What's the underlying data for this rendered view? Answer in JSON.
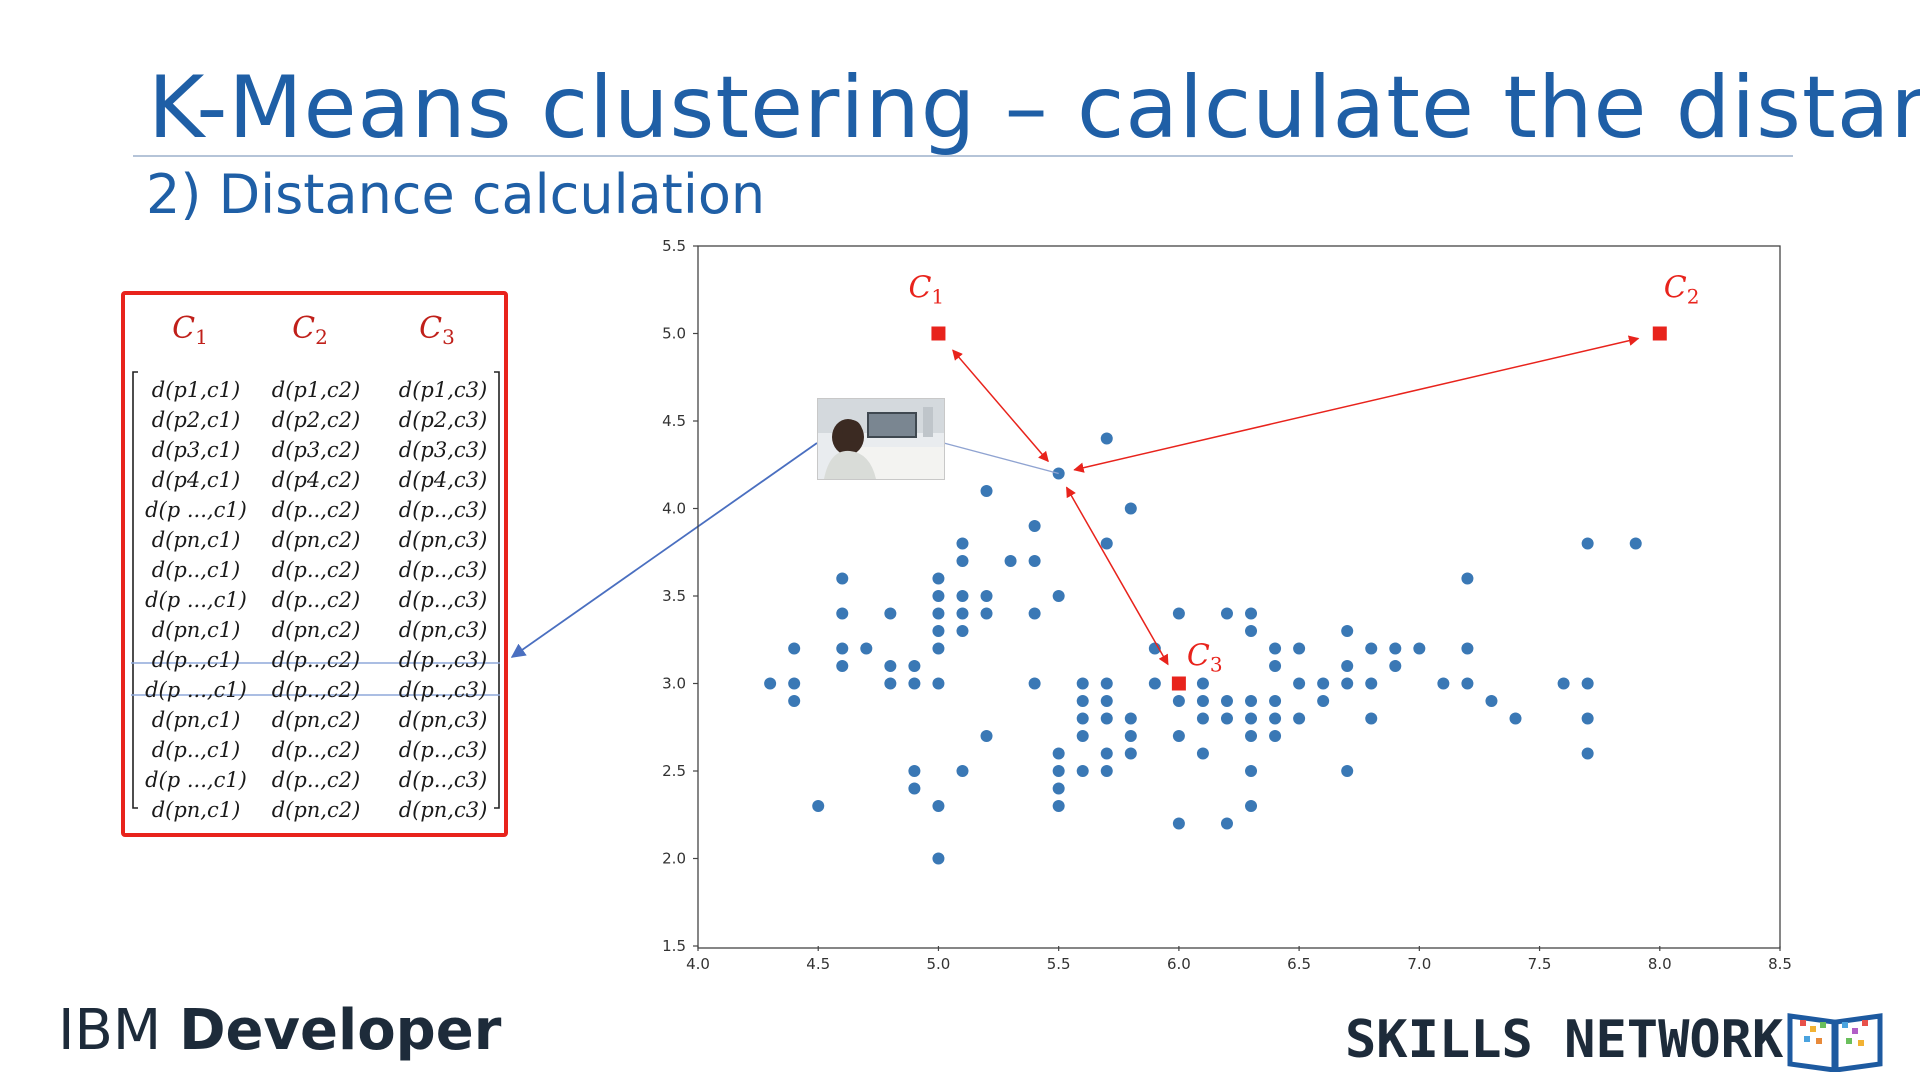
{
  "slide": {
    "title": "K-Means clustering – calculate the distance",
    "subtitle": "2) Distance calculation"
  },
  "matrix": {
    "headers": [
      "C1",
      "C2",
      "C3"
    ],
    "header_base": "C",
    "header_subs": [
      "1",
      "2",
      "3"
    ],
    "rows": [
      [
        "d(p1,c1)",
        "d(p1,c2)",
        "d(p1,c3)"
      ],
      [
        "d(p2,c1)",
        "d(p2,c2)",
        "d(p2,c3)"
      ],
      [
        "d(p3,c1)",
        "d(p3,c2)",
        "d(p3,c3)"
      ],
      [
        "d(p4,c1)",
        "d(p4,c2)",
        "d(p4,c3)"
      ],
      [
        "d(p ...,c1)",
        "d(p..,c2)",
        "d(p..,c3)"
      ],
      [
        "d(pn,c1)",
        "d(pn,c2)",
        "d(pn,c3)"
      ],
      [
        "d(p..,c1)",
        "d(p..,c2)",
        "d(p..,c3)"
      ],
      [
        "d(p ...,c1)",
        "d(p..,c2)",
        "d(p..,c3)"
      ],
      [
        "d(pn,c1)",
        "d(pn,c2)",
        "d(pn,c3)"
      ],
      [
        "d(p..,c1)",
        "d(p..,c2)",
        "d(p..,c3)"
      ],
      [
        "d(p ...,c1)",
        "d(p..,c2)",
        "d(p..,c3)"
      ],
      [
        "d(pn,c1)",
        "d(pn,c2)",
        "d(pn,c3)"
      ],
      [
        "d(p..,c1)",
        "d(p..,c2)",
        "d(p..,c3)"
      ],
      [
        "d(p ...,c1)",
        "d(p..,c2)",
        "d(p..,c3)"
      ],
      [
        "d(pn,c1)",
        "d(pn,c2)",
        "d(pn,c3)"
      ]
    ],
    "highlighted_row": 10,
    "border_color": "#e8231c",
    "header_color": "#c0201a"
  },
  "chart_data": {
    "type": "scatter",
    "title": "",
    "xlabel": "",
    "ylabel": "",
    "xlim": [
      4.0,
      8.5
    ],
    "ylim": [
      1.5,
      5.5
    ],
    "xticks": [
      "4.0",
      "4.5",
      "5.0",
      "5.5",
      "6.0",
      "6.5",
      "7.0",
      "7.5",
      "8.0",
      "8.5"
    ],
    "yticks": [
      "1.5",
      "2.0",
      "2.5",
      "3.0",
      "3.5",
      "4.0",
      "4.5",
      "5.0",
      "5.5"
    ],
    "grid": false,
    "point_color": "#3a78b5",
    "centroid_color": "#e8231c",
    "points": [
      [
        4.3,
        3.0
      ],
      [
        4.4,
        3.2
      ],
      [
        4.4,
        3.0
      ],
      [
        4.4,
        2.9
      ],
      [
        4.5,
        2.3
      ],
      [
        4.6,
        3.6
      ],
      [
        4.6,
        3.4
      ],
      [
        4.6,
        3.2
      ],
      [
        4.6,
        3.1
      ],
      [
        4.7,
        3.2
      ],
      [
        4.8,
        3.4
      ],
      [
        4.8,
        3.1
      ],
      [
        4.8,
        3.0
      ],
      [
        4.9,
        3.1
      ],
      [
        4.9,
        3.0
      ],
      [
        4.9,
        2.5
      ],
      [
        4.9,
        2.4
      ],
      [
        5.0,
        3.6
      ],
      [
        5.0,
        3.5
      ],
      [
        5.0,
        3.4
      ],
      [
        5.0,
        3.3
      ],
      [
        5.0,
        3.2
      ],
      [
        5.0,
        3.0
      ],
      [
        5.0,
        2.3
      ],
      [
        5.0,
        2.0
      ],
      [
        5.1,
        3.8
      ],
      [
        5.1,
        3.7
      ],
      [
        5.1,
        3.5
      ],
      [
        5.1,
        3.4
      ],
      [
        5.1,
        3.3
      ],
      [
        5.1,
        2.5
      ],
      [
        5.2,
        4.1
      ],
      [
        5.2,
        3.5
      ],
      [
        5.2,
        3.4
      ],
      [
        5.2,
        2.7
      ],
      [
        5.3,
        3.7
      ],
      [
        5.4,
        3.9
      ],
      [
        5.4,
        3.7
      ],
      [
        5.4,
        3.4
      ],
      [
        5.4,
        3.0
      ],
      [
        5.5,
        4.2
      ],
      [
        5.5,
        3.5
      ],
      [
        5.5,
        2.6
      ],
      [
        5.5,
        2.5
      ],
      [
        5.5,
        2.4
      ],
      [
        5.5,
        2.3
      ],
      [
        5.6,
        3.0
      ],
      [
        5.6,
        2.9
      ],
      [
        5.6,
        2.8
      ],
      [
        5.6,
        2.7
      ],
      [
        5.6,
        2.5
      ],
      [
        5.7,
        4.4
      ],
      [
        5.7,
        3.8
      ],
      [
        5.7,
        3.0
      ],
      [
        5.7,
        2.9
      ],
      [
        5.7,
        2.8
      ],
      [
        5.7,
        2.6
      ],
      [
        5.7,
        2.5
      ],
      [
        5.8,
        4.0
      ],
      [
        5.8,
        2.8
      ],
      [
        5.8,
        2.7
      ],
      [
        5.8,
        2.6
      ],
      [
        5.9,
        3.2
      ],
      [
        5.9,
        3.0
      ],
      [
        6.0,
        3.4
      ],
      [
        6.0,
        2.9
      ],
      [
        6.0,
        2.7
      ],
      [
        6.0,
        2.2
      ],
      [
        6.1,
        3.0
      ],
      [
        6.1,
        2.9
      ],
      [
        6.1,
        2.8
      ],
      [
        6.1,
        2.6
      ],
      [
        6.2,
        3.4
      ],
      [
        6.2,
        2.9
      ],
      [
        6.2,
        2.8
      ],
      [
        6.2,
        2.2
      ],
      [
        6.3,
        3.4
      ],
      [
        6.3,
        3.3
      ],
      [
        6.3,
        2.9
      ],
      [
        6.3,
        2.8
      ],
      [
        6.3,
        2.7
      ],
      [
        6.3,
        2.5
      ],
      [
        6.3,
        2.3
      ],
      [
        6.4,
        3.2
      ],
      [
        6.4,
        3.1
      ],
      [
        6.4,
        2.9
      ],
      [
        6.4,
        2.8
      ],
      [
        6.4,
        2.7
      ],
      [
        6.5,
        3.2
      ],
      [
        6.5,
        3.0
      ],
      [
        6.5,
        2.8
      ],
      [
        6.6,
        3.0
      ],
      [
        6.6,
        2.9
      ],
      [
        6.7,
        3.3
      ],
      [
        6.7,
        3.1
      ],
      [
        6.7,
        3.0
      ],
      [
        6.7,
        2.5
      ],
      [
        6.8,
        3.2
      ],
      [
        6.8,
        3.0
      ],
      [
        6.8,
        2.8
      ],
      [
        6.9,
        3.2
      ],
      [
        6.9,
        3.1
      ],
      [
        7.0,
        3.2
      ],
      [
        7.1,
        3.0
      ],
      [
        7.2,
        3.6
      ],
      [
        7.2,
        3.2
      ],
      [
        7.2,
        3.0
      ],
      [
        7.3,
        2.9
      ],
      [
        7.4,
        2.8
      ],
      [
        7.6,
        3.0
      ],
      [
        7.7,
        3.8
      ],
      [
        7.7,
        3.0
      ],
      [
        7.7,
        2.8
      ],
      [
        7.7,
        2.6
      ],
      [
        7.9,
        3.8
      ]
    ],
    "highlighted_point": [
      5.5,
      4.2
    ],
    "centroids": [
      {
        "name": "C1",
        "base": "C",
        "sub": "1",
        "x": 5.0,
        "y": 5.0
      },
      {
        "name": "C2",
        "base": "C",
        "sub": "2",
        "x": 8.0,
        "y": 5.0
      },
      {
        "name": "C3",
        "base": "C",
        "sub": "3",
        "x": 6.0,
        "y": 3.0
      }
    ]
  },
  "footer": {
    "brand_light": "IBM ",
    "brand_bold": "Developer",
    "network": "SKILLS NETWORK"
  }
}
